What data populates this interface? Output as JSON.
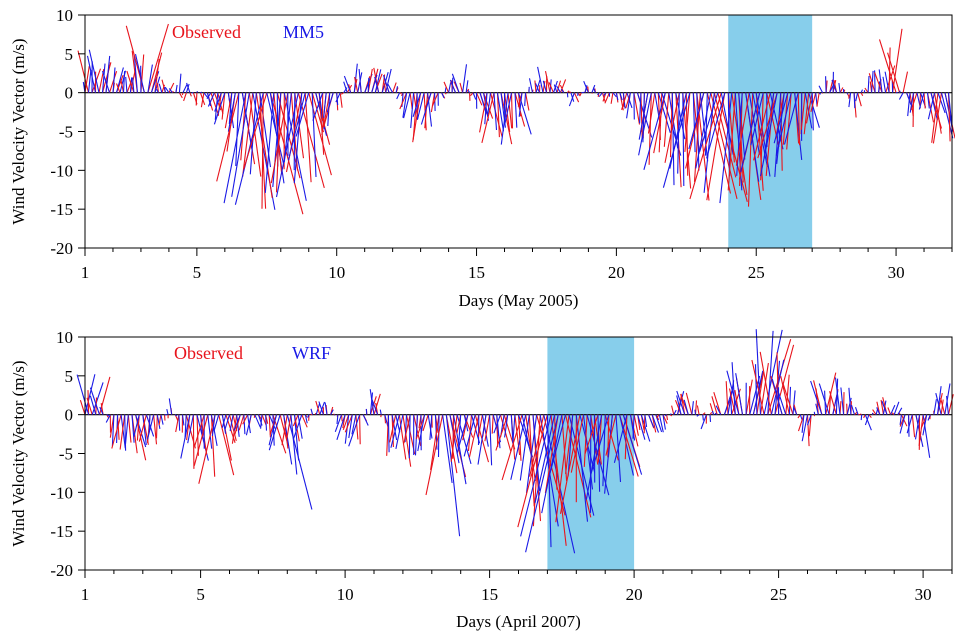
{
  "chart_data": [
    {
      "type": "wind-vector",
      "xlabel": "Days (May 2005)",
      "ylabel": "Wind Velocity Vector (m/s)",
      "xlim": [
        1,
        32
      ],
      "ylim": [
        -20,
        10
      ],
      "xticks": [
        1,
        5,
        10,
        15,
        20,
        25,
        30
      ],
      "yticks": [
        10,
        5,
        0,
        -5,
        -10,
        -15,
        -20
      ],
      "shaded_days": [
        24,
        27
      ],
      "shade_color": "#87CEEB",
      "legend": [
        {
          "label": "Observed",
          "color": "#e8141c"
        },
        {
          "label": "MM5",
          "color": "#1a1ae6"
        }
      ],
      "series": [
        {
          "name": "Observed",
          "color": "#e8141c",
          "anchors": [
            [
              1,
              5
            ],
            [
              1.6,
              4
            ],
            [
              2.5,
              1
            ],
            [
              3.2,
              9
            ],
            [
              3.6,
              2
            ],
            [
              4.5,
              -1
            ],
            [
              5.5,
              -3
            ],
            [
              6.2,
              -4
            ],
            [
              6.6,
              -12
            ],
            [
              7,
              -16
            ],
            [
              7.5,
              -15
            ],
            [
              8,
              -16
            ],
            [
              8.5,
              -12
            ],
            [
              9,
              -10
            ],
            [
              9.5,
              -6
            ],
            [
              10,
              -3
            ],
            [
              10.5,
              2
            ],
            [
              11,
              3
            ],
            [
              11.5,
              3
            ],
            [
              12,
              1
            ],
            [
              12.5,
              -2
            ],
            [
              13,
              -6
            ],
            [
              13.5,
              -3
            ],
            [
              14,
              1
            ],
            [
              14.5,
              2
            ],
            [
              15,
              -3
            ],
            [
              15.5,
              -6
            ],
            [
              16,
              -8
            ],
            [
              16.5,
              -4
            ],
            [
              17,
              1
            ],
            [
              17.5,
              2
            ],
            [
              18,
              2
            ],
            [
              18.5,
              -1
            ],
            [
              19,
              1
            ],
            [
              19.5,
              -1
            ],
            [
              20,
              -2
            ],
            [
              20.5,
              -3
            ],
            [
              21,
              -7
            ],
            [
              21.5,
              -9
            ],
            [
              22,
              -11
            ],
            [
              22.5,
              -12
            ],
            [
              23,
              -13
            ],
            [
              23.5,
              -14
            ],
            [
              24,
              -13
            ],
            [
              24.5,
              -15
            ],
            [
              25,
              -13
            ],
            [
              25.5,
              -12
            ],
            [
              26,
              -10
            ],
            [
              26.5,
              -8
            ],
            [
              27,
              -5
            ],
            [
              27.5,
              2
            ],
            [
              28,
              2
            ],
            [
              28.5,
              -3
            ],
            [
              29,
              1
            ],
            [
              29.5,
              3
            ],
            [
              30,
              10
            ],
            [
              30.5,
              -4
            ],
            [
              31,
              -3
            ],
            [
              31.5,
              -6
            ]
          ]
        },
        {
          "name": "MM5",
          "color": "#1a1ae6",
          "anchors": [
            [
              1,
              3
            ],
            [
              1.6,
              6
            ],
            [
              2.5,
              2
            ],
            [
              3.2,
              7
            ],
            [
              3.6,
              1
            ],
            [
              4.5,
              2
            ],
            [
              5.5,
              -2
            ],
            [
              6.2,
              -5
            ],
            [
              6.6,
              -14
            ],
            [
              7,
              -15
            ],
            [
              7.5,
              -14
            ],
            [
              8,
              -14
            ],
            [
              8.5,
              -13
            ],
            [
              9,
              -11
            ],
            [
              9.5,
              -5
            ],
            [
              10,
              -2
            ],
            [
              10.5,
              3
            ],
            [
              11,
              4
            ],
            [
              11.5,
              3
            ],
            [
              12,
              2
            ],
            [
              12.5,
              -3
            ],
            [
              13,
              -5
            ],
            [
              13.5,
              -4
            ],
            [
              14,
              2
            ],
            [
              14.5,
              3
            ],
            [
              15,
              -2
            ],
            [
              15.5,
              -5
            ],
            [
              16,
              -7
            ],
            [
              16.5,
              -5
            ],
            [
              17,
              2
            ],
            [
              17.5,
              3
            ],
            [
              18,
              1
            ],
            [
              18.5,
              -2
            ],
            [
              19,
              2
            ],
            [
              19.5,
              -1
            ],
            [
              20,
              -1
            ],
            [
              20.5,
              -4
            ],
            [
              21,
              -6
            ],
            [
              21.5,
              -8
            ],
            [
              22,
              -10
            ],
            [
              22.5,
              -11
            ],
            [
              23,
              -12
            ],
            [
              23.5,
              -13
            ],
            [
              24,
              -12
            ],
            [
              24.5,
              -14
            ],
            [
              25,
              -12
            ],
            [
              25.5,
              -11
            ],
            [
              26,
              -9
            ],
            [
              26.5,
              -7
            ],
            [
              27,
              -4
            ],
            [
              27.5,
              3
            ],
            [
              28,
              1
            ],
            [
              28.5,
              -2
            ],
            [
              29,
              2
            ],
            [
              29.5,
              4
            ],
            [
              30,
              1
            ],
            [
              30.5,
              -3
            ],
            [
              31,
              -2
            ],
            [
              31.5,
              -5
            ]
          ]
        }
      ]
    },
    {
      "type": "wind-vector",
      "xlabel": "Days (April 2007)",
      "ylabel": "Wind Velocity Vector (m/s)",
      "xlim": [
        1,
        31
      ],
      "ylim": [
        -20,
        10
      ],
      "xticks": [
        1,
        5,
        10,
        15,
        20,
        25,
        30
      ],
      "yticks": [
        10,
        5,
        0,
        -5,
        -10,
        -15,
        -20
      ],
      "shaded_days": [
        17,
        20
      ],
      "shade_color": "#87CEEB",
      "legend": [
        {
          "label": "Observed",
          "color": "#e8141c"
        },
        {
          "label": "WRF",
          "color": "#1a1ae6"
        }
      ],
      "series": [
        {
          "name": "Observed",
          "color": "#e8141c",
          "anchors": [
            [
              1,
              3
            ],
            [
              1.5,
              4
            ],
            [
              2,
              -5
            ],
            [
              2.5,
              -6
            ],
            [
              3,
              -4
            ],
            [
              3.5,
              -3
            ],
            [
              4,
              1
            ],
            [
              4.5,
              -6
            ],
            [
              5,
              -7
            ],
            [
              5.5,
              -9
            ],
            [
              6,
              -4
            ],
            [
              6.5,
              -2
            ],
            [
              7,
              -1
            ],
            [
              7.5,
              -4
            ],
            [
              8,
              -5
            ],
            [
              8.5,
              -2
            ],
            [
              9,
              1
            ],
            [
              9.5,
              2
            ],
            [
              10,
              -2
            ],
            [
              10.5,
              -3
            ],
            [
              11,
              4
            ],
            [
              11.5,
              -5
            ],
            [
              12,
              -6
            ],
            [
              12.5,
              -4
            ],
            [
              13,
              -2
            ],
            [
              13.5,
              -13
            ],
            [
              14,
              -3
            ],
            [
              14.5,
              -6
            ],
            [
              15,
              -4
            ],
            [
              15.5,
              -5
            ],
            [
              16,
              -7
            ],
            [
              16.5,
              -13
            ],
            [
              17,
              -15
            ],
            [
              17.5,
              -14
            ],
            [
              18,
              -12
            ],
            [
              18.5,
              -11
            ],
            [
              19,
              -9
            ],
            [
              19.5,
              -7
            ],
            [
              20,
              -3
            ],
            [
              20.5,
              -2
            ],
            [
              21,
              -1
            ],
            [
              21.5,
              2
            ],
            [
              22,
              3
            ],
            [
              22.5,
              -1
            ],
            [
              23,
              3
            ],
            [
              23.5,
              5
            ],
            [
              24,
              4
            ],
            [
              24.5,
              9
            ],
            [
              25,
              7
            ],
            [
              25.5,
              4
            ],
            [
              26,
              -5
            ],
            [
              26.5,
              5
            ],
            [
              27,
              3
            ],
            [
              27.5,
              2
            ],
            [
              28,
              -1
            ],
            [
              28.5,
              2
            ],
            [
              29,
              1
            ],
            [
              29.5,
              -3
            ],
            [
              30,
              -5
            ],
            [
              30.5,
              3
            ]
          ]
        },
        {
          "name": "WRF",
          "color": "#1a1ae6",
          "anchors": [
            [
              1,
              5
            ],
            [
              1.5,
              3
            ],
            [
              2,
              -4
            ],
            [
              2.5,
              -5
            ],
            [
              3,
              -5
            ],
            [
              3.5,
              -2
            ],
            [
              4,
              2
            ],
            [
              4.5,
              -5
            ],
            [
              5,
              -6
            ],
            [
              5.5,
              -3
            ],
            [
              6,
              -2
            ],
            [
              6.5,
              -3
            ],
            [
              7,
              -2
            ],
            [
              7.5,
              -3
            ],
            [
              8,
              -12
            ],
            [
              8.5,
              -3
            ],
            [
              9,
              2
            ],
            [
              9.5,
              1
            ],
            [
              10,
              -3
            ],
            [
              10.5,
              -4
            ],
            [
              11,
              5
            ],
            [
              11.5,
              -4
            ],
            [
              12,
              -5
            ],
            [
              12.5,
              -6
            ],
            [
              13,
              -3
            ],
            [
              13.5,
              -14
            ],
            [
              14,
              -4
            ],
            [
              14.5,
              -5
            ],
            [
              15,
              -6
            ],
            [
              15.5,
              -4
            ],
            [
              16,
              -6
            ],
            [
              16.5,
              -14
            ],
            [
              17,
              -16
            ],
            [
              17.5,
              -15
            ],
            [
              18,
              -13
            ],
            [
              18.5,
              -12
            ],
            [
              19,
              -10
            ],
            [
              19.5,
              -8
            ],
            [
              20,
              -4
            ],
            [
              20.5,
              -3
            ],
            [
              21,
              -2
            ],
            [
              21.5,
              3
            ],
            [
              22,
              2
            ],
            [
              22.5,
              -2
            ],
            [
              23,
              2
            ],
            [
              23.5,
              6
            ],
            [
              24,
              5
            ],
            [
              24.5,
              11
            ],
            [
              25,
              6
            ],
            [
              25.5,
              3
            ],
            [
              26,
              -4
            ],
            [
              26.5,
              4
            ],
            [
              27,
              4
            ],
            [
              27.5,
              3
            ],
            [
              28,
              -2
            ],
            [
              28.5,
              1
            ],
            [
              29,
              2
            ],
            [
              29.5,
              -4
            ],
            [
              30,
              -6
            ],
            [
              30.5,
              4
            ]
          ]
        }
      ]
    }
  ]
}
